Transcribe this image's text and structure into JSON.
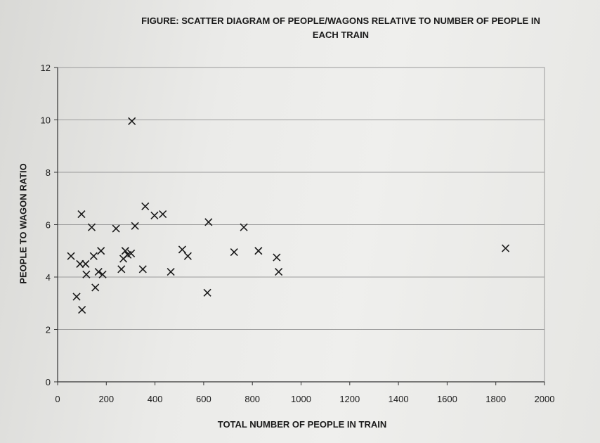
{
  "chart_data": {
    "type": "scatter",
    "title_line1": "FIGURE: SCATTER DIAGRAM OF PEOPLE/WAGONS RELATIVE TO NUMBER OF PEOPLE IN",
    "title_line2": "EACH TRAIN",
    "xlabel": "TOTAL NUMBER OF PEOPLE IN TRAIN",
    "ylabel": "PEOPLE TO WAGON RATIO",
    "xlim": [
      0,
      2000
    ],
    "ylim": [
      0,
      12
    ],
    "x_ticks": [
      0,
      200,
      400,
      600,
      800,
      1000,
      1200,
      1400,
      1600,
      1800,
      2000
    ],
    "y_ticks": [
      0,
      2,
      4,
      6,
      8,
      10,
      12
    ],
    "grid": "horizontal",
    "marker": "x",
    "marker_color": "#1a1a1a",
    "gridline_color": "#9a9a9a",
    "points": [
      {
        "x": 55,
        "y": 4.8
      },
      {
        "x": 78,
        "y": 3.25
      },
      {
        "x": 92,
        "y": 4.5
      },
      {
        "x": 98,
        "y": 6.4
      },
      {
        "x": 100,
        "y": 2.75
      },
      {
        "x": 115,
        "y": 4.5
      },
      {
        "x": 118,
        "y": 4.1
      },
      {
        "x": 140,
        "y": 5.9
      },
      {
        "x": 148,
        "y": 4.8
      },
      {
        "x": 155,
        "y": 3.6
      },
      {
        "x": 168,
        "y": 4.2
      },
      {
        "x": 178,
        "y": 5.0
      },
      {
        "x": 185,
        "y": 4.1
      },
      {
        "x": 240,
        "y": 5.85
      },
      {
        "x": 262,
        "y": 4.3
      },
      {
        "x": 270,
        "y": 4.7
      },
      {
        "x": 278,
        "y": 5.0
      },
      {
        "x": 288,
        "y": 4.85
      },
      {
        "x": 302,
        "y": 4.9
      },
      {
        "x": 305,
        "y": 9.95
      },
      {
        "x": 318,
        "y": 5.95
      },
      {
        "x": 350,
        "y": 4.3
      },
      {
        "x": 360,
        "y": 6.7
      },
      {
        "x": 398,
        "y": 6.35
      },
      {
        "x": 432,
        "y": 6.4
      },
      {
        "x": 465,
        "y": 4.2
      },
      {
        "x": 512,
        "y": 5.05
      },
      {
        "x": 535,
        "y": 4.8
      },
      {
        "x": 615,
        "y": 3.4
      },
      {
        "x": 620,
        "y": 6.1
      },
      {
        "x": 725,
        "y": 4.95
      },
      {
        "x": 765,
        "y": 5.9
      },
      {
        "x": 825,
        "y": 5.0
      },
      {
        "x": 900,
        "y": 4.75
      },
      {
        "x": 908,
        "y": 4.2
      },
      {
        "x": 1840,
        "y": 5.1
      }
    ]
  }
}
